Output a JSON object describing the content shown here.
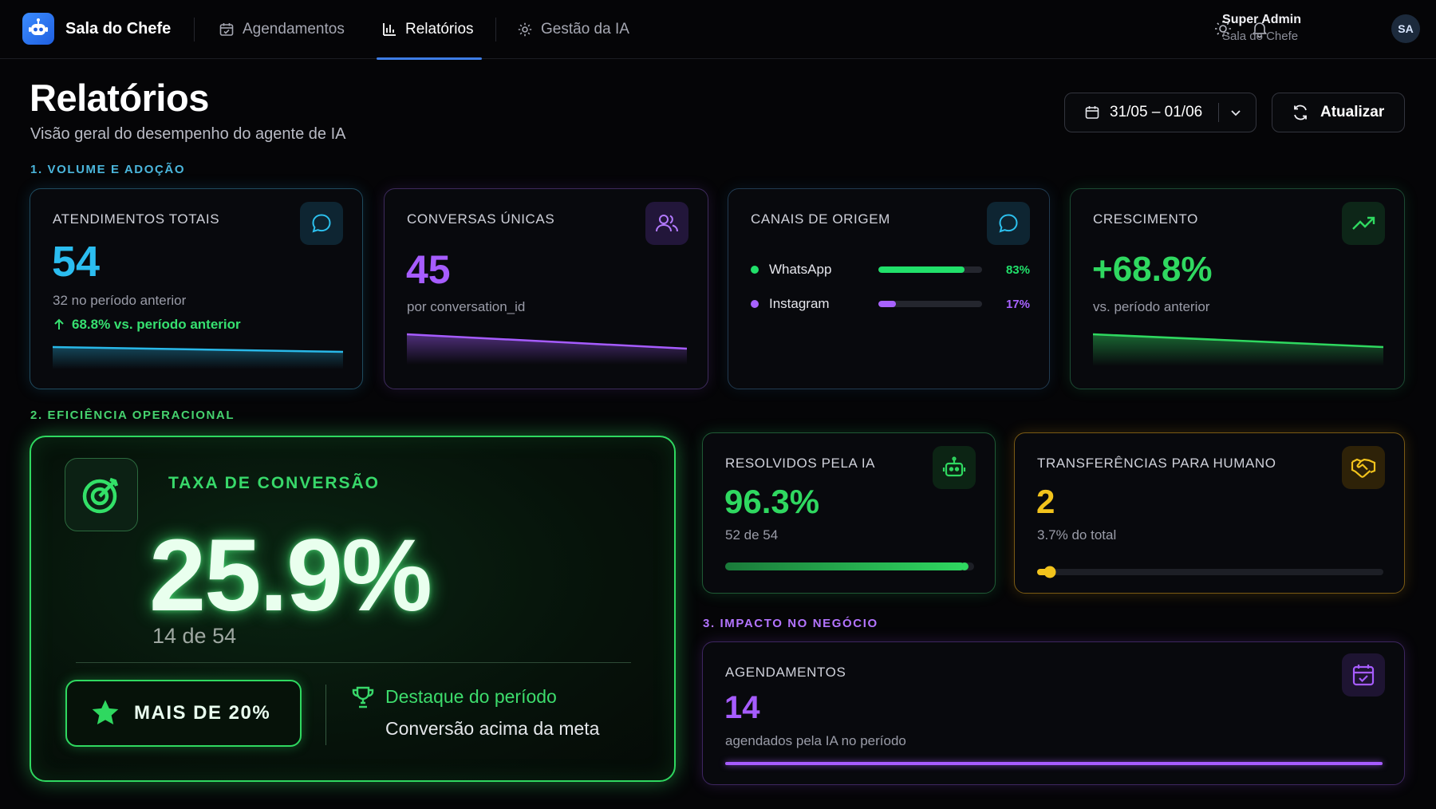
{
  "app": {
    "brand": "Sala do Chefe"
  },
  "nav": [
    {
      "label": "Agendamentos",
      "icon": "calendar-icon"
    },
    {
      "label": "Relatórios",
      "icon": "bar-chart-icon",
      "active": true
    },
    {
      "label": "Gestão da IA",
      "icon": "gear-icon"
    }
  ],
  "user": {
    "name": "Super Admin",
    "subtitle": "Sala do Chefe",
    "initials": "SA"
  },
  "header": {
    "title": "Relatórios",
    "subtitle": "Visão geral do desempenho do agente de IA",
    "date_range": "31/05 – 01/06",
    "refresh_label": "Atualizar"
  },
  "sections": {
    "volume": "1. VOLUME E ADOÇÃO",
    "efficiency": "2. EFICIÊNCIA OPERACIONAL",
    "impact": "3. IMPACTO NO NEGÓCIO"
  },
  "cards": {
    "total": {
      "title": "ATENDIMENTOS TOTAIS",
      "value": "54",
      "previous": "32 no período anterior",
      "trend": "68.8% vs. período anterior"
    },
    "unique": {
      "title": "CONVERSAS ÚNICAS",
      "value": "45",
      "note": "por conversation_id"
    },
    "channels": {
      "title": "CANAIS DE ORIGEM",
      "items": [
        {
          "name": "WhatsApp",
          "pct_label": "83%",
          "share": 0.83,
          "color": "#21e06a"
        },
        {
          "name": "Instagram",
          "pct_label": "17%",
          "share": 0.17,
          "color": "#a862ff"
        }
      ]
    },
    "growth": {
      "title": "CRESCIMENTO",
      "value": "+68.8%",
      "note": "vs. período anterior"
    },
    "conversion": {
      "title": "TAXA DE CONVERSÃO",
      "value": "25.9%",
      "detail": "14 de 54",
      "badge": "MAIS DE 20%",
      "highlight_title": "Destaque do período",
      "highlight_sub": "Conversão acima da meta"
    },
    "resolved": {
      "title": "RESOLVIDOS PELA IA",
      "value": "96.3%",
      "detail": "52 de 54",
      "progress": 0.963
    },
    "transfers": {
      "title": "TRANSFERÊNCIAS PARA HUMANO",
      "value": "2",
      "detail": "3.7% do total",
      "progress": 0.037
    },
    "appointments": {
      "title": "AGENDAMENTOS",
      "value": "14",
      "detail": "agendados pela IA no período",
      "progress": 1.0
    }
  },
  "colors": {
    "accent_blue": "#29b8e8",
    "accent_purple": "#a65cff",
    "accent_green": "#2fd860",
    "accent_yellow": "#f2c31c"
  }
}
